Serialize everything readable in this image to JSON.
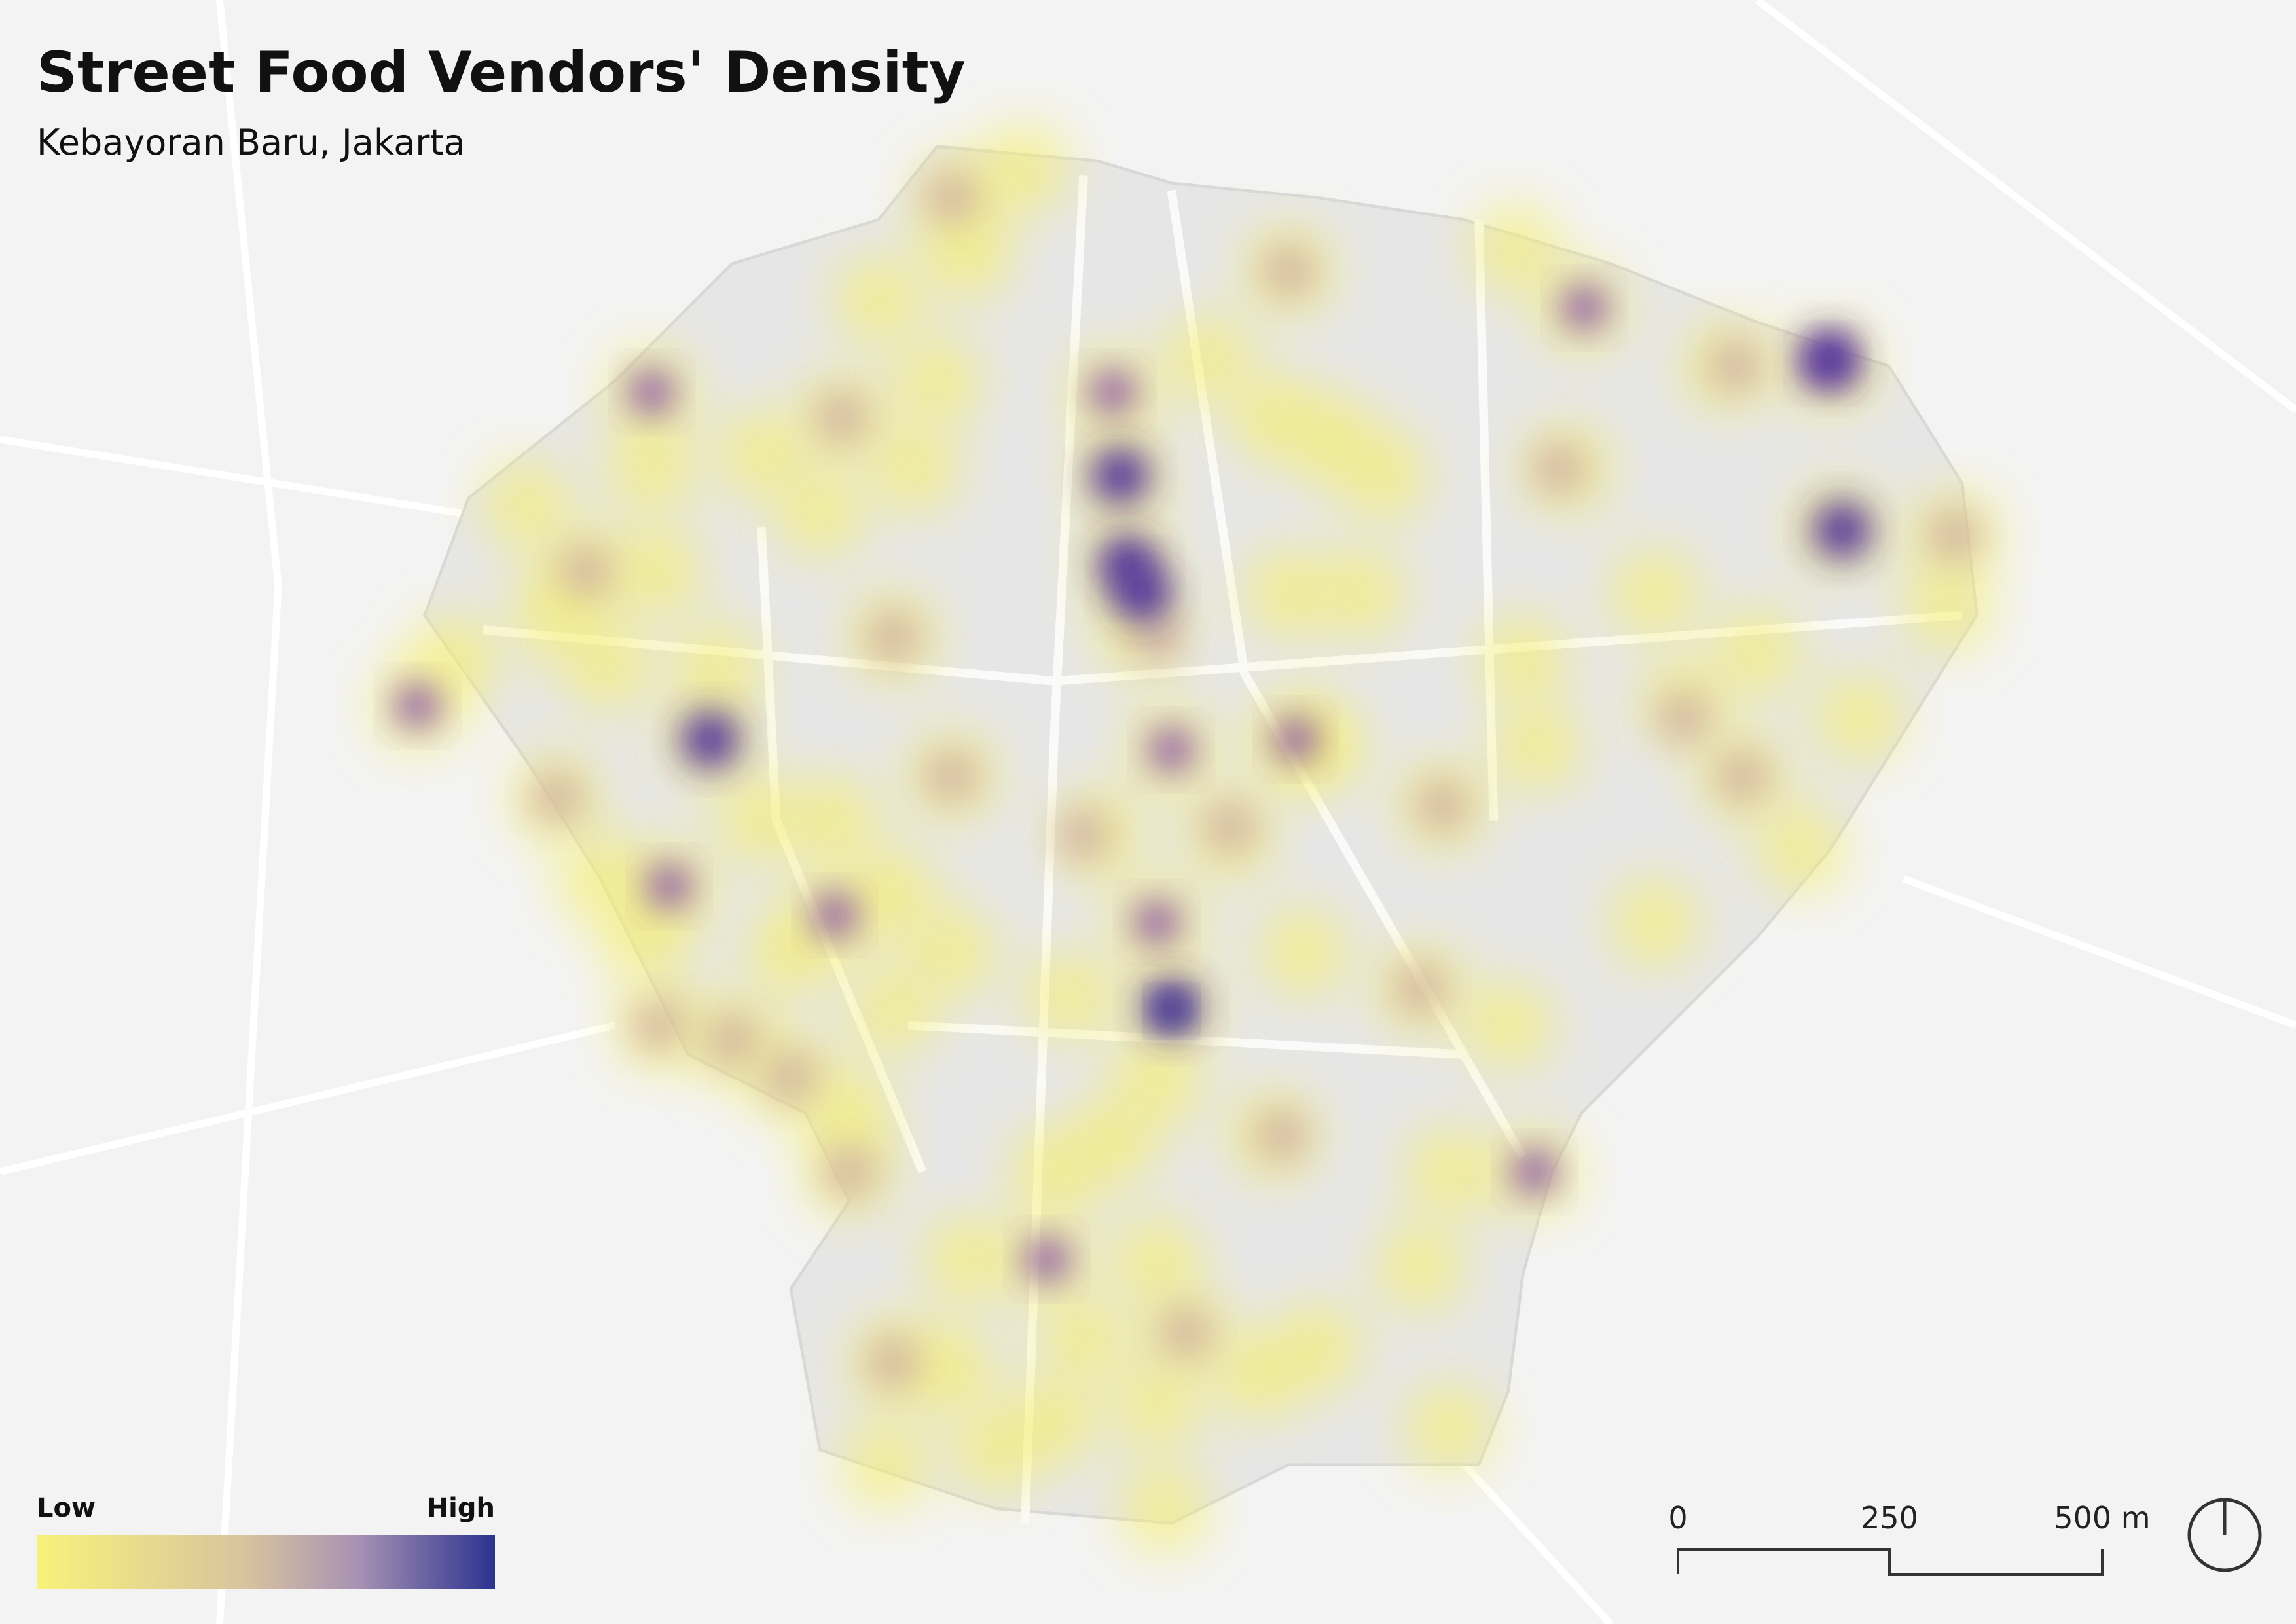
{
  "title": "Street Food Vendors' Density",
  "subtitle": "Kebayoran Baru, Jakarta",
  "legend": {
    "low": "Low",
    "high": "High"
  },
  "scale_bar": {
    "labels": [
      "0",
      "250",
      "500 m"
    ]
  }
}
